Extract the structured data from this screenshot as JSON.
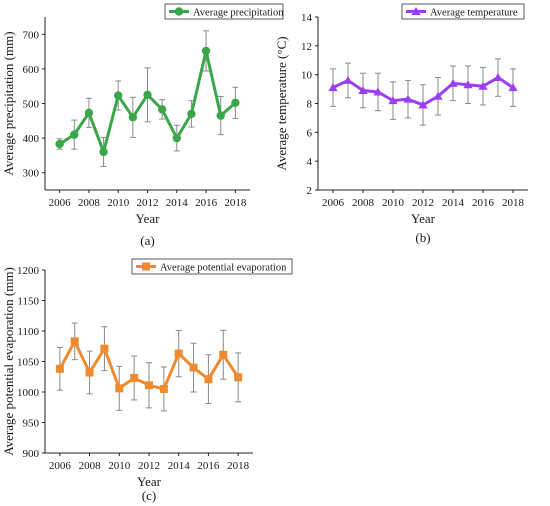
{
  "chart_data": [
    {
      "type": "line",
      "caption": "(a)",
      "xlabel": "Year",
      "ylabel": "Average precipitation (mm)",
      "xlim": [
        2005,
        2019
      ],
      "ylim": [
        250,
        750
      ],
      "xticks": [
        2006,
        2008,
        2010,
        2012,
        2014,
        2016,
        2018
      ],
      "yticks": [
        300,
        400,
        500,
        600,
        700
      ],
      "legend_position": "top-right",
      "color": "#3aa64a",
      "marker": "circle",
      "series": [
        {
          "name": "Average precipitation",
          "x": [
            2006,
            2007,
            2008,
            2009,
            2010,
            2011,
            2012,
            2013,
            2014,
            2015,
            2016,
            2017,
            2018
          ],
          "y": [
            383,
            410,
            473,
            360,
            523,
            460,
            525,
            483,
            400,
            470,
            652,
            465,
            502
          ],
          "err": [
            15,
            42,
            42,
            42,
            42,
            58,
            78,
            28,
            37,
            38,
            58,
            55,
            45
          ]
        }
      ]
    },
    {
      "type": "line",
      "caption": "(b)",
      "xlabel": "Year",
      "ylabel": "Average temperature (°C)",
      "xlim": [
        2005,
        2019
      ],
      "ylim": [
        2,
        14
      ],
      "xticks": [
        2006,
        2008,
        2010,
        2012,
        2014,
        2016,
        2018
      ],
      "yticks": [
        2,
        4,
        6,
        8,
        10,
        12,
        14
      ],
      "legend_position": "top-right",
      "color": "#9b3ff0",
      "marker": "triangle",
      "series": [
        {
          "name": "Average temperature",
          "x": [
            2006,
            2007,
            2008,
            2009,
            2010,
            2011,
            2012,
            2013,
            2014,
            2015,
            2016,
            2017,
            2018
          ],
          "y": [
            9.1,
            9.6,
            8.9,
            8.8,
            8.2,
            8.3,
            7.9,
            8.5,
            9.4,
            9.3,
            9.2,
            9.8,
            9.1
          ],
          "err": [
            1.3,
            1.2,
            1.2,
            1.3,
            1.3,
            1.3,
            1.4,
            1.3,
            1.2,
            1.3,
            1.3,
            1.3,
            1.3
          ]
        }
      ]
    },
    {
      "type": "line",
      "caption": "(c)",
      "xlabel": "Year",
      "ylabel": "Average potential evaporation (mm)",
      "xlim": [
        2005,
        2019
      ],
      "ylim": [
        900,
        1200
      ],
      "xticks": [
        2006,
        2008,
        2010,
        2012,
        2014,
        2016,
        2018
      ],
      "yticks": [
        900,
        950,
        1000,
        1050,
        1100,
        1150,
        1200
      ],
      "legend_position": "top-center",
      "color": "#f08a2e",
      "marker": "square",
      "series": [
        {
          "name": "Average potential evaporation",
          "x": [
            2006,
            2007,
            2008,
            2009,
            2010,
            2011,
            2012,
            2013,
            2014,
            2015,
            2016,
            2017,
            2018
          ],
          "y": [
            1038,
            1083,
            1032,
            1071,
            1006,
            1023,
            1011,
            1005,
            1063,
            1040,
            1021,
            1061,
            1024
          ],
          "err": [
            35,
            30,
            35,
            36,
            36,
            36,
            37,
            36,
            38,
            40,
            40,
            40,
            40
          ]
        }
      ]
    }
  ]
}
